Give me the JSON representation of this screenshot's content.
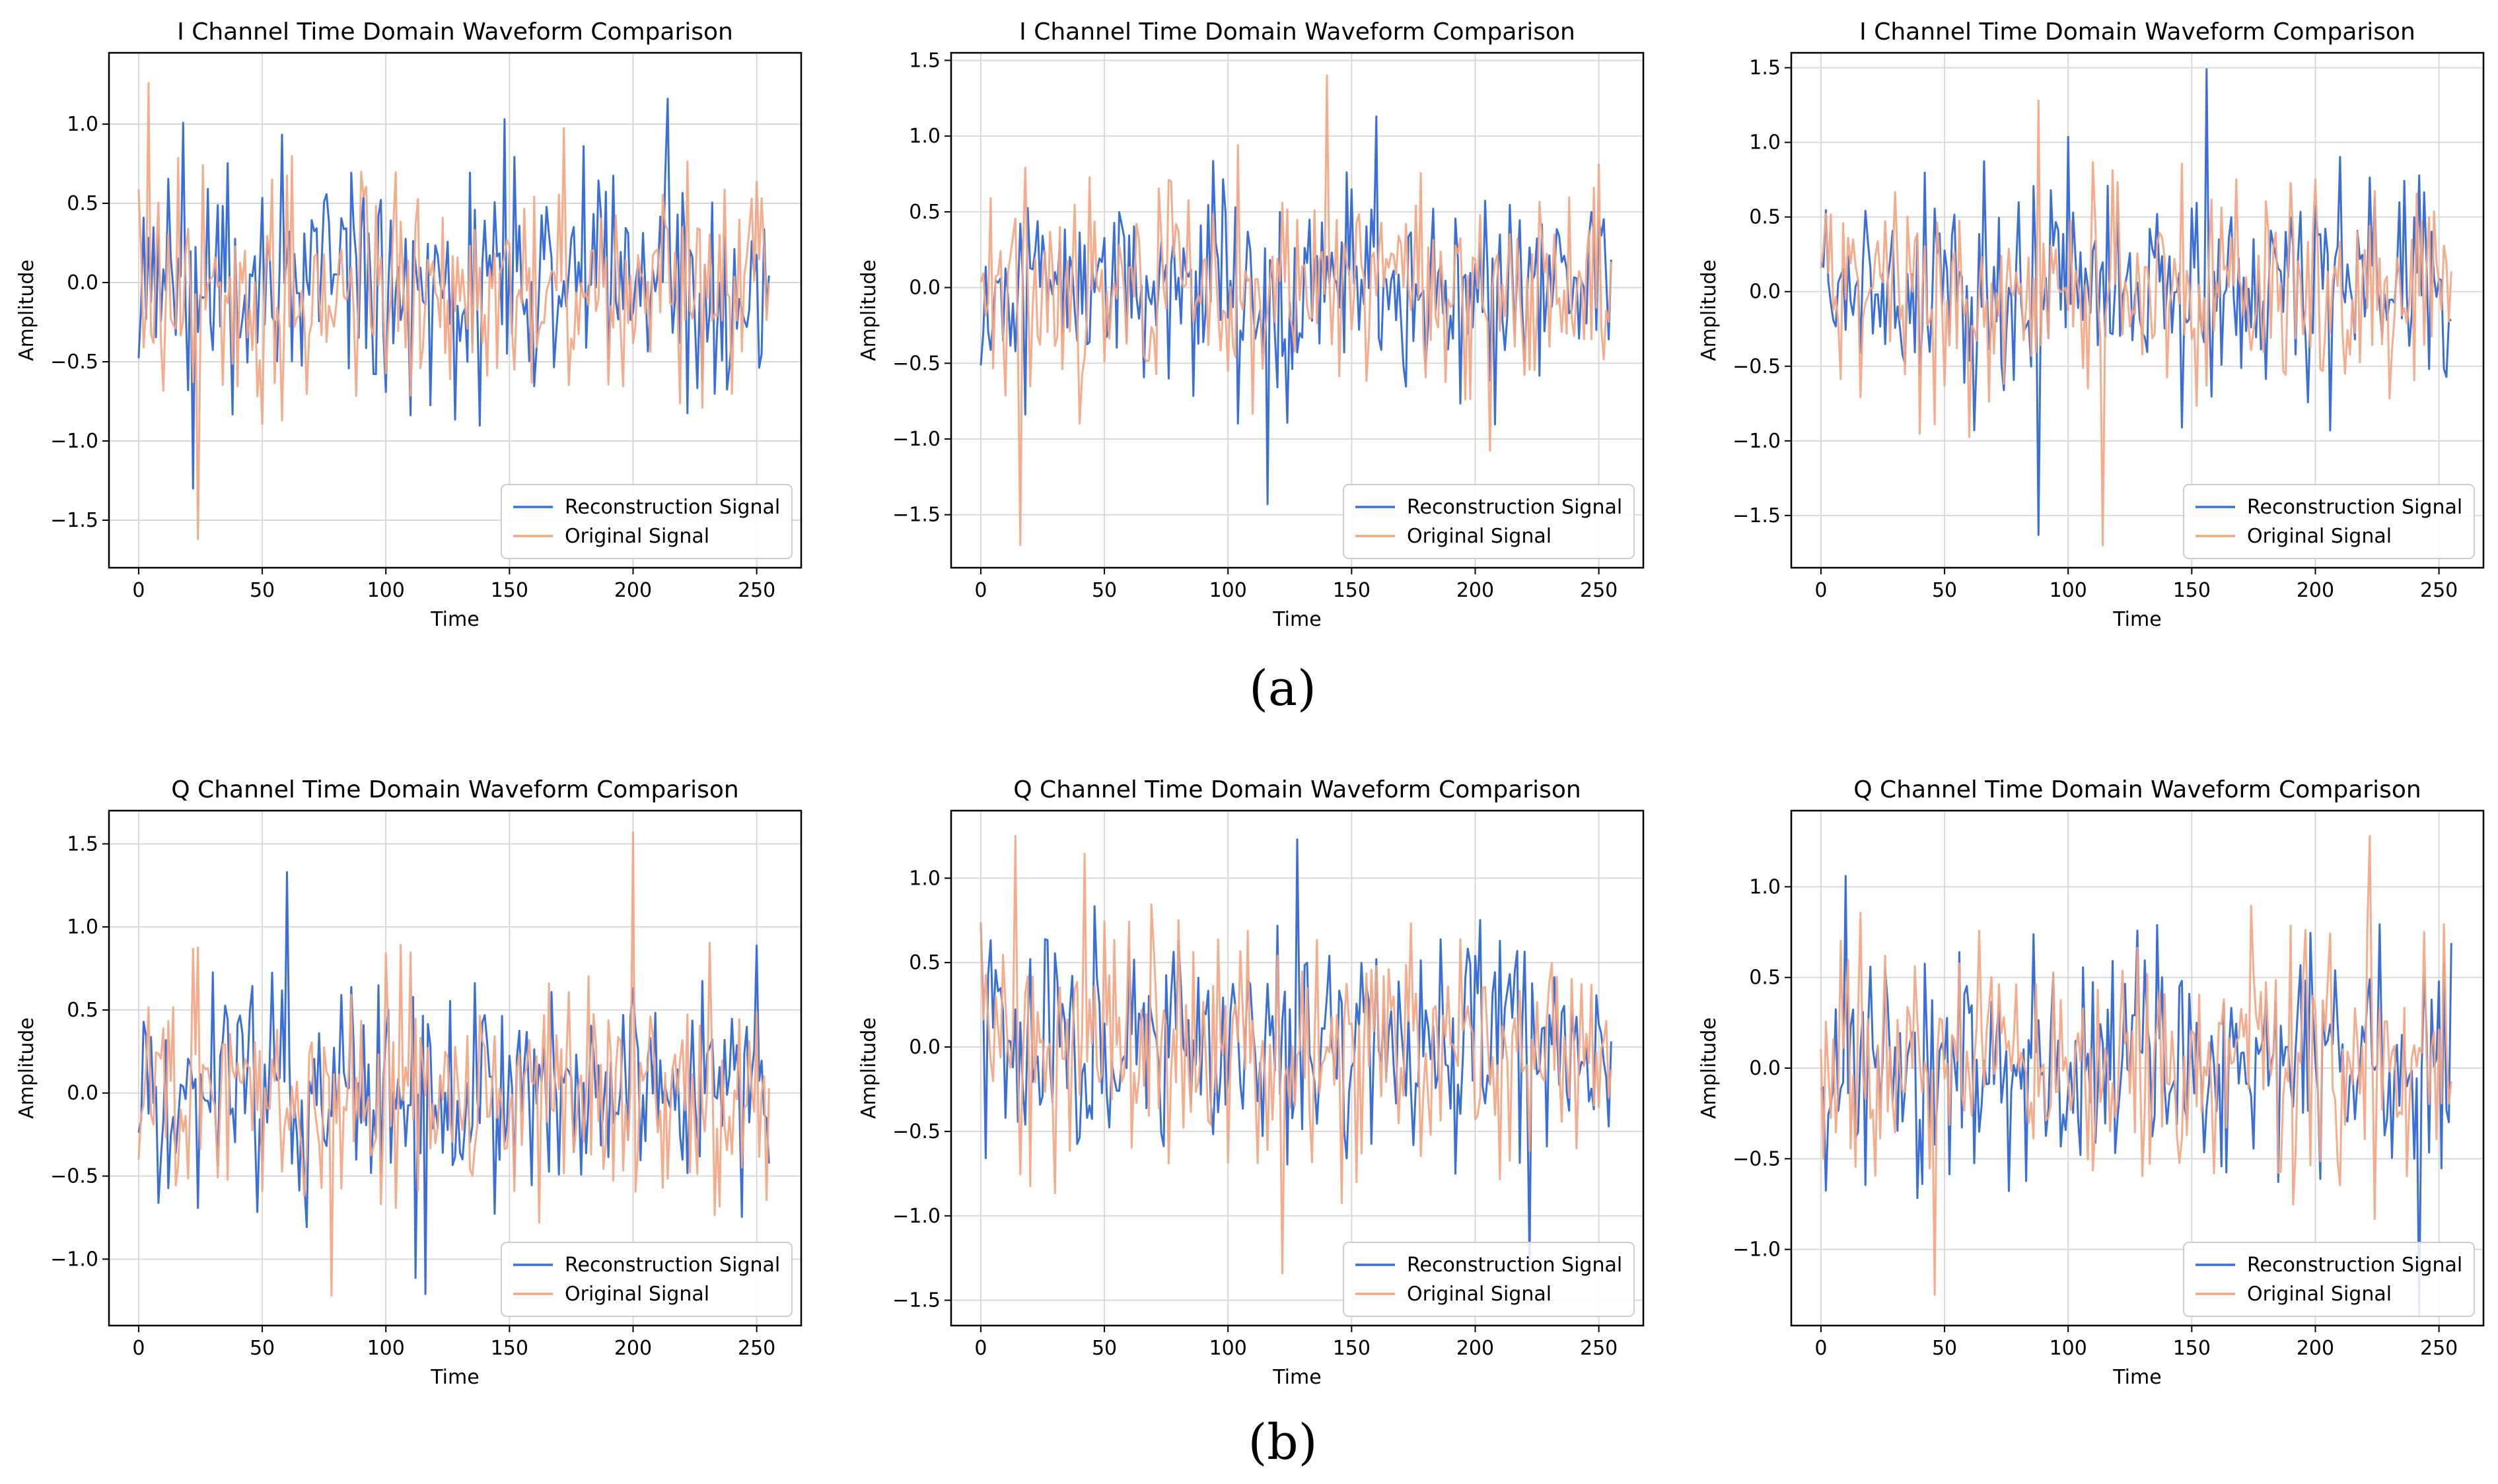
{
  "figure": {
    "row_labels": [
      "(a)",
      "(b)"
    ],
    "colors": {
      "reconstruction": "#3a6fd8",
      "original": "#f4a582",
      "grid": "#d9d9d9",
      "axis": "#000000"
    }
  },
  "chart_data": [
    {
      "type": "line",
      "panel": "a1",
      "title": "I Channel Time Domain Waveform Comparison",
      "xlabel": "Time",
      "ylabel": "Amplitude",
      "xlim": [
        -12,
        268
      ],
      "ylim": [
        -1.8,
        1.45
      ],
      "xticks": [
        0,
        50,
        100,
        150,
        200,
        250
      ],
      "xtick_labels": [
        "0",
        "50",
        "100",
        "150",
        "200",
        "250"
      ],
      "yticks": [
        -1.5,
        -1.0,
        -0.5,
        0.0,
        0.5,
        1.0
      ],
      "ytick_labels": [
        "−1.5",
        "−1.0",
        "−0.5",
        "0.0",
        "0.5",
        "1.0"
      ],
      "grid": true,
      "legend_position": "lower-right",
      "n_samples": 256,
      "x_range": [
        0,
        255
      ],
      "series": [
        {
          "name": "Reconstruction Signal",
          "seed": 11,
          "peak_max": 1.16,
          "peak_min": -1.3
        },
        {
          "name": "Original Signal",
          "seed": 12,
          "peak_max": 1.26,
          "peak_min": -1.62
        }
      ]
    },
    {
      "type": "line",
      "panel": "a2",
      "title": "I Channel Time Domain Waveform Comparison",
      "xlabel": "Time",
      "ylabel": "Amplitude",
      "xlim": [
        -12,
        268
      ],
      "ylim": [
        -1.85,
        1.55
      ],
      "xticks": [
        0,
        50,
        100,
        150,
        200,
        250
      ],
      "xtick_labels": [
        "0",
        "50",
        "100",
        "150",
        "200",
        "250"
      ],
      "yticks": [
        -1.5,
        -1.0,
        -0.5,
        0.0,
        0.5,
        1.0,
        1.5
      ],
      "ytick_labels": [
        "−1.5",
        "−1.0",
        "−0.5",
        "0.0",
        "0.5",
        "1.0",
        "1.5"
      ],
      "grid": true,
      "legend_position": "lower-right",
      "n_samples": 256,
      "x_range": [
        0,
        255
      ],
      "series": [
        {
          "name": "Reconstruction Signal",
          "seed": 21,
          "peak_max": 1.13,
          "peak_min": -1.43
        },
        {
          "name": "Original Signal",
          "seed": 22,
          "peak_max": 1.4,
          "peak_min": -1.7
        }
      ]
    },
    {
      "type": "line",
      "panel": "a3",
      "title": "I Channel Time Domain Waveform Comparison",
      "xlabel": "Time",
      "ylabel": "Amplitude",
      "xlim": [
        -12,
        268
      ],
      "ylim": [
        -1.85,
        1.6
      ],
      "xticks": [
        0,
        50,
        100,
        150,
        200,
        250
      ],
      "xtick_labels": [
        "0",
        "50",
        "100",
        "150",
        "200",
        "250"
      ],
      "yticks": [
        -1.5,
        -1.0,
        -0.5,
        0.0,
        0.5,
        1.0,
        1.5
      ],
      "ytick_labels": [
        "−1.5",
        "−1.0",
        "−0.5",
        "0.0",
        "0.5",
        "1.0",
        "1.5"
      ],
      "grid": true,
      "legend_position": "lower-right",
      "n_samples": 256,
      "x_range": [
        0,
        255
      ],
      "series": [
        {
          "name": "Reconstruction Signal",
          "seed": 31,
          "peak_max": 1.49,
          "peak_min": -1.63
        },
        {
          "name": "Original Signal",
          "seed": 32,
          "peak_max": 1.28,
          "peak_min": -1.7
        }
      ]
    },
    {
      "type": "line",
      "panel": "b1",
      "title": "Q Channel Time Domain Waveform Comparison",
      "xlabel": "Time",
      "ylabel": "Amplitude",
      "xlim": [
        -12,
        268
      ],
      "ylim": [
        -1.4,
        1.7
      ],
      "xticks": [
        0,
        50,
        100,
        150,
        200,
        250
      ],
      "xtick_labels": [
        "0",
        "50",
        "100",
        "150",
        "200",
        "250"
      ],
      "yticks": [
        -1.0,
        -0.5,
        0.0,
        0.5,
        1.0,
        1.5
      ],
      "ytick_labels": [
        "−1.0",
        "−0.5",
        "0.0",
        "0.5",
        "1.0",
        "1.5"
      ],
      "grid": true,
      "legend_position": "lower-right",
      "n_samples": 256,
      "x_range": [
        0,
        255
      ],
      "series": [
        {
          "name": "Reconstruction Signal",
          "seed": 41,
          "peak_max": 1.33,
          "peak_min": -1.21
        },
        {
          "name": "Original Signal",
          "seed": 42,
          "peak_max": 1.57,
          "peak_min": -1.22
        }
      ]
    },
    {
      "type": "line",
      "panel": "b2",
      "title": "Q Channel Time Domain Waveform Comparison",
      "xlabel": "Time",
      "ylabel": "Amplitude",
      "xlim": [
        -12,
        268
      ],
      "ylim": [
        -1.65,
        1.4
      ],
      "xticks": [
        0,
        50,
        100,
        150,
        200,
        250
      ],
      "xtick_labels": [
        "0",
        "50",
        "100",
        "150",
        "200",
        "250"
      ],
      "yticks": [
        -1.5,
        -1.0,
        -0.5,
        0.0,
        0.5,
        1.0
      ],
      "ytick_labels": [
        "−1.5",
        "−1.0",
        "−0.5",
        "0.0",
        "0.5",
        "1.0"
      ],
      "grid": true,
      "legend_position": "lower-right",
      "n_samples": 256,
      "x_range": [
        0,
        255
      ],
      "series": [
        {
          "name": "Reconstruction Signal",
          "seed": 51,
          "peak_max": 1.23,
          "peak_min": -1.3
        },
        {
          "name": "Original Signal",
          "seed": 52,
          "peak_max": 1.25,
          "peak_min": -1.34
        }
      ]
    },
    {
      "type": "line",
      "panel": "b3",
      "title": "Q Channel Time Domain Waveform Comparison",
      "xlabel": "Time",
      "ylabel": "Amplitude",
      "xlim": [
        -12,
        268
      ],
      "ylim": [
        -1.42,
        1.42
      ],
      "xticks": [
        0,
        50,
        100,
        150,
        200,
        250
      ],
      "xtick_labels": [
        "0",
        "50",
        "100",
        "150",
        "200",
        "250"
      ],
      "yticks": [
        -1.0,
        -0.5,
        0.0,
        0.5,
        1.0
      ],
      "ytick_labels": [
        "−1.0",
        "−0.5",
        "0.0",
        "0.5",
        "1.0"
      ],
      "grid": true,
      "legend_position": "lower-right",
      "n_samples": 256,
      "x_range": [
        0,
        255
      ],
      "series": [
        {
          "name": "Reconstruction Signal",
          "seed": 61,
          "peak_max": 1.06,
          "peak_min": -1.36
        },
        {
          "name": "Original Signal",
          "seed": 62,
          "peak_max": 1.28,
          "peak_min": -1.25
        }
      ]
    }
  ]
}
